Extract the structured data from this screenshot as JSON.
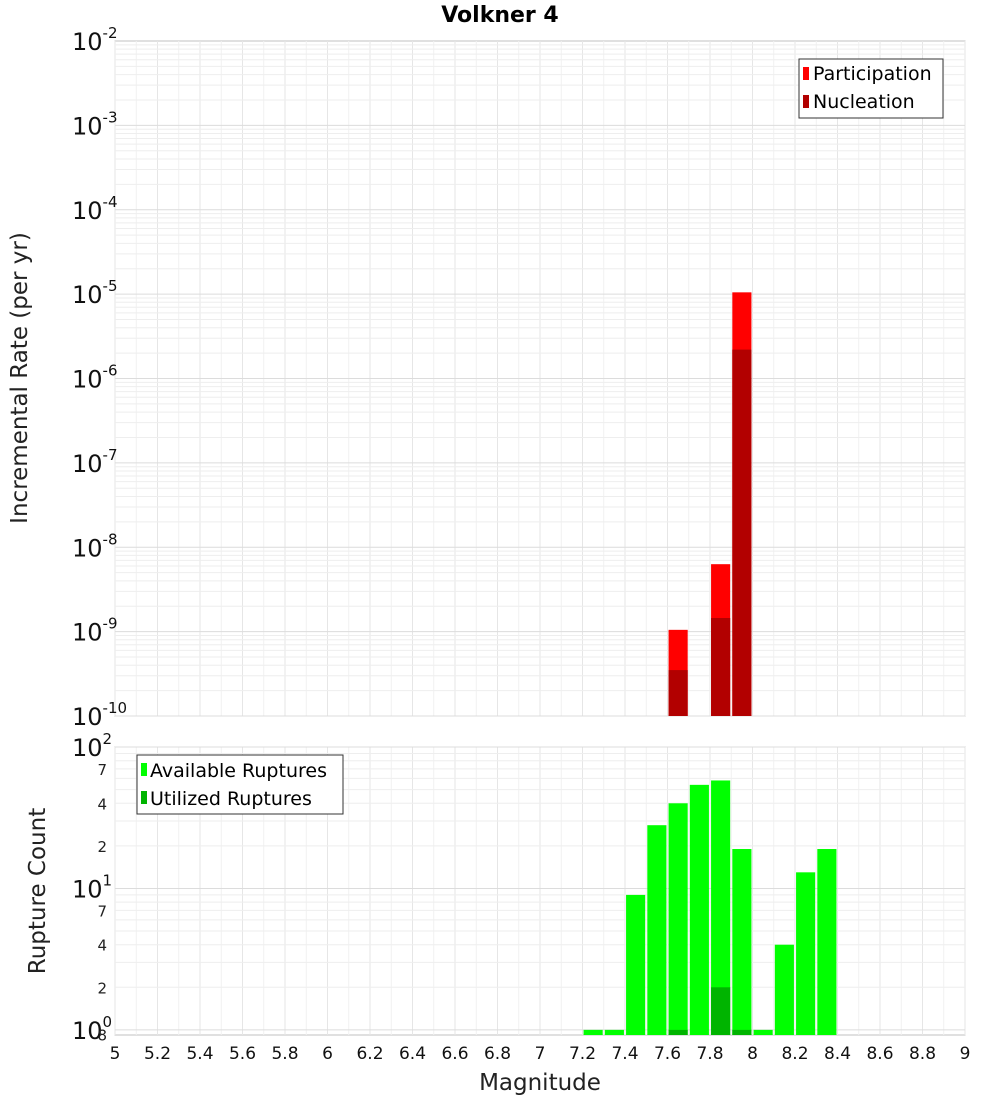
{
  "title": "Volkner 4",
  "colors": {
    "participation": "#ff0000",
    "nucleation": "#b20000",
    "available": "#00ff00",
    "utilized": "#00b400",
    "grid": "#e6e6e6",
    "border": "#c0c0c0"
  },
  "chart_data": [
    {
      "type": "bar",
      "title": "Volkner 4",
      "xlabel": "",
      "ylabel": "Incremental Rate (per yr)",
      "yscale": "log",
      "xlim": [
        5,
        9
      ],
      "ylim": [
        1e-10,
        0.01
      ],
      "y_tick_labels": [
        {
          "base": "10",
          "exp": "-2"
        },
        {
          "base": "10",
          "exp": "-3"
        },
        {
          "base": "10",
          "exp": "-4"
        },
        {
          "base": "10",
          "exp": "-5"
        },
        {
          "base": "10",
          "exp": "-6"
        },
        {
          "base": "10",
          "exp": "-7"
        },
        {
          "base": "10",
          "exp": "-8"
        },
        {
          "base": "10",
          "exp": "-9"
        },
        {
          "base": "10",
          "exp": "-10"
        }
      ],
      "grid": true,
      "legend_position": "top-right",
      "bar_width": 0.09,
      "series": [
        {
          "name": "Participation",
          "x": [
            7.65,
            7.85,
            7.95
          ],
          "values": [
            1.05e-09,
            6.3e-09,
            1.05e-05
          ]
        },
        {
          "name": "Nucleation",
          "x": [
            7.65,
            7.85,
            7.95
          ],
          "values": [
            3.5e-10,
            1.45e-09,
            2.2e-06
          ]
        }
      ]
    },
    {
      "type": "bar",
      "title": "",
      "xlabel": "Magnitude",
      "ylabel": "Rupture Count",
      "yscale": "log",
      "xlim": [
        5,
        9
      ],
      "ylim": [
        0.92,
        100
      ],
      "x_ticks": [
        "5",
        "5.2",
        "5.4",
        "5.6",
        "5.8",
        "6",
        "6.2",
        "6.4",
        "6.6",
        "6.8",
        "7",
        "7.2",
        "7.4",
        "7.6",
        "7.8",
        "8",
        "8.2",
        "8.4",
        "8.6",
        "8.8",
        "9"
      ],
      "y_major_labels": [
        {
          "value": 100,
          "base": "10",
          "exp": "2"
        },
        {
          "value": 10,
          "base": "10",
          "exp": "1"
        },
        {
          "value": 1,
          "base": "10",
          "exp": "0"
        }
      ],
      "y_minor_labels": [
        {
          "value": 70,
          "label": "7"
        },
        {
          "value": 40,
          "label": "4"
        },
        {
          "value": 20,
          "label": "2"
        },
        {
          "value": 7,
          "label": "7"
        },
        {
          "value": 4,
          "label": "4"
        },
        {
          "value": 2,
          "label": "2"
        },
        {
          "value": 0.93,
          "label": "8"
        }
      ],
      "grid": true,
      "legend_position": "top-left",
      "bar_width": 0.09,
      "series": [
        {
          "name": "Available Ruptures",
          "x": [
            7.25,
            7.35,
            7.45,
            7.55,
            7.65,
            7.75,
            7.85,
            7.95,
            8.05,
            8.15,
            8.25,
            8.35
          ],
          "values": [
            1,
            1,
            9,
            28,
            40,
            54,
            58,
            19,
            1,
            4,
            13,
            19
          ]
        },
        {
          "name": "Utilized Ruptures",
          "x": [
            7.65,
            7.85,
            7.95
          ],
          "values": [
            1,
            2,
            1
          ]
        }
      ]
    }
  ]
}
